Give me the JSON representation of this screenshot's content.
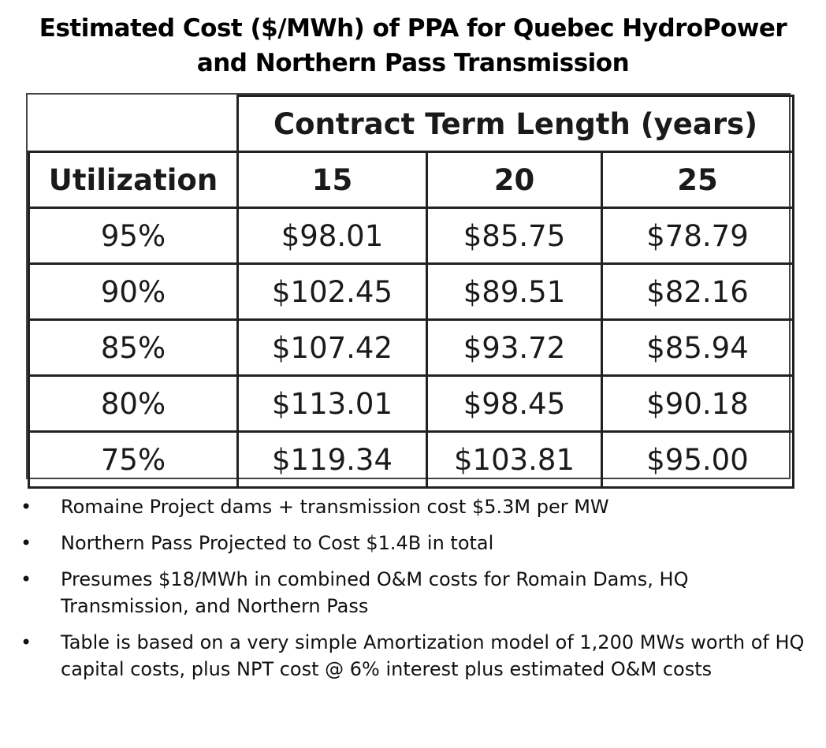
{
  "title_line1": "Estimated Cost ($/MWh) of PPA for Quebec HydroPower",
  "title_line2": "and Northern Pass Transmission",
  "table": {
    "group_header": "Contract Term Length (years)",
    "row_header_label": "Utilization",
    "columns": [
      "15",
      "20",
      "25"
    ],
    "rows": [
      {
        "utilization": "95%",
        "values": [
          "$98.01",
          "$85.75",
          "$78.79"
        ]
      },
      {
        "utilization": "90%",
        "values": [
          "$102.45",
          "$89.51",
          "$82.16"
        ]
      },
      {
        "utilization": "85%",
        "values": [
          "$107.42",
          "$93.72",
          "$85.94"
        ]
      },
      {
        "utilization": "80%",
        "values": [
          "$113.01",
          "$98.45",
          "$90.18"
        ]
      },
      {
        "utilization": "75%",
        "values": [
          "$119.34",
          "$103.81",
          "$95.00"
        ]
      }
    ]
  },
  "bullet_symbol": "•",
  "bullets": [
    "Romaine Project dams + transmission cost $5.3M per MW",
    "Northern Pass Projected to Cost $1.4B in total",
    "Presumes $18/MWh in combined O&M costs for Romain Dams, HQ Transmission, and Northern Pass",
    "Table is based on a very simple Amortization model of 1,200 MWs worth of HQ capital costs, plus NPT cost @ 6% interest plus estimated O&M costs"
  ]
}
